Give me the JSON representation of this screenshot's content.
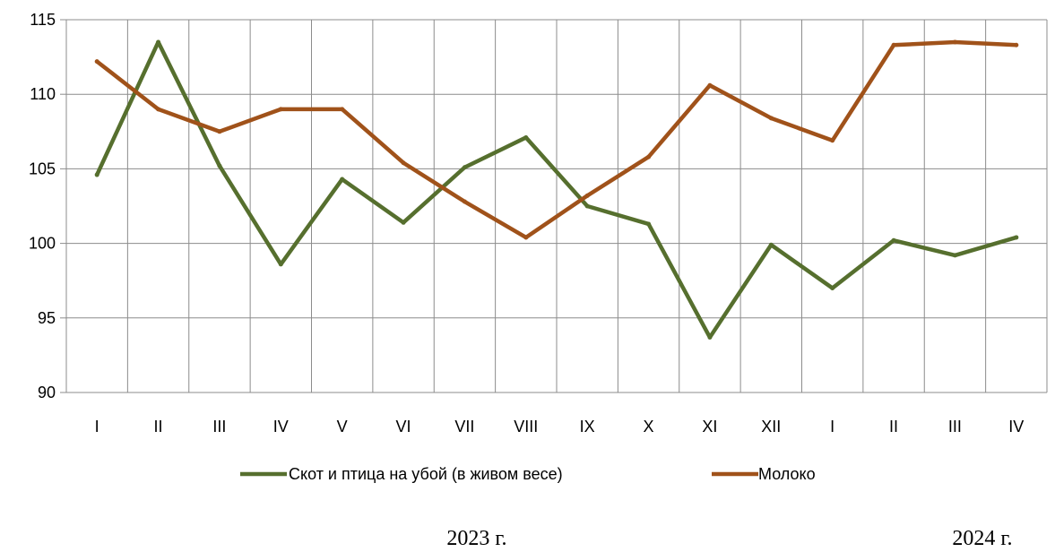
{
  "chart_data": {
    "type": "line",
    "categories": [
      "I",
      "II",
      "III",
      "IV",
      "V",
      "VI",
      "VII",
      "VIII",
      "IX",
      "X",
      "XI",
      "XII",
      "I",
      "II",
      "III",
      "IV"
    ],
    "ylim": [
      90,
      115
    ],
    "yticks": [
      90,
      95,
      100,
      105,
      110,
      115
    ],
    "grid": true,
    "legend_position": "bottom",
    "series": [
      {
        "name": "Скот и птица на убой (в живом весе)",
        "color": "#566F2E",
        "values": [
          104.6,
          113.5,
          105.2,
          98.6,
          104.3,
          101.4,
          105.1,
          107.1,
          102.5,
          101.3,
          93.7,
          99.9,
          97.0,
          100.2,
          99.2,
          100.4
        ]
      },
      {
        "name": "Молоко",
        "color": "#A0521A",
        "values": [
          112.2,
          109.0,
          107.5,
          109.0,
          109.0,
          105.4,
          102.8,
          100.4,
          103.2,
          105.8,
          110.6,
          108.4,
          106.9,
          113.3,
          113.5,
          113.3
        ]
      }
    ],
    "year_labels": [
      "2023 г.",
      "2024 г."
    ]
  }
}
